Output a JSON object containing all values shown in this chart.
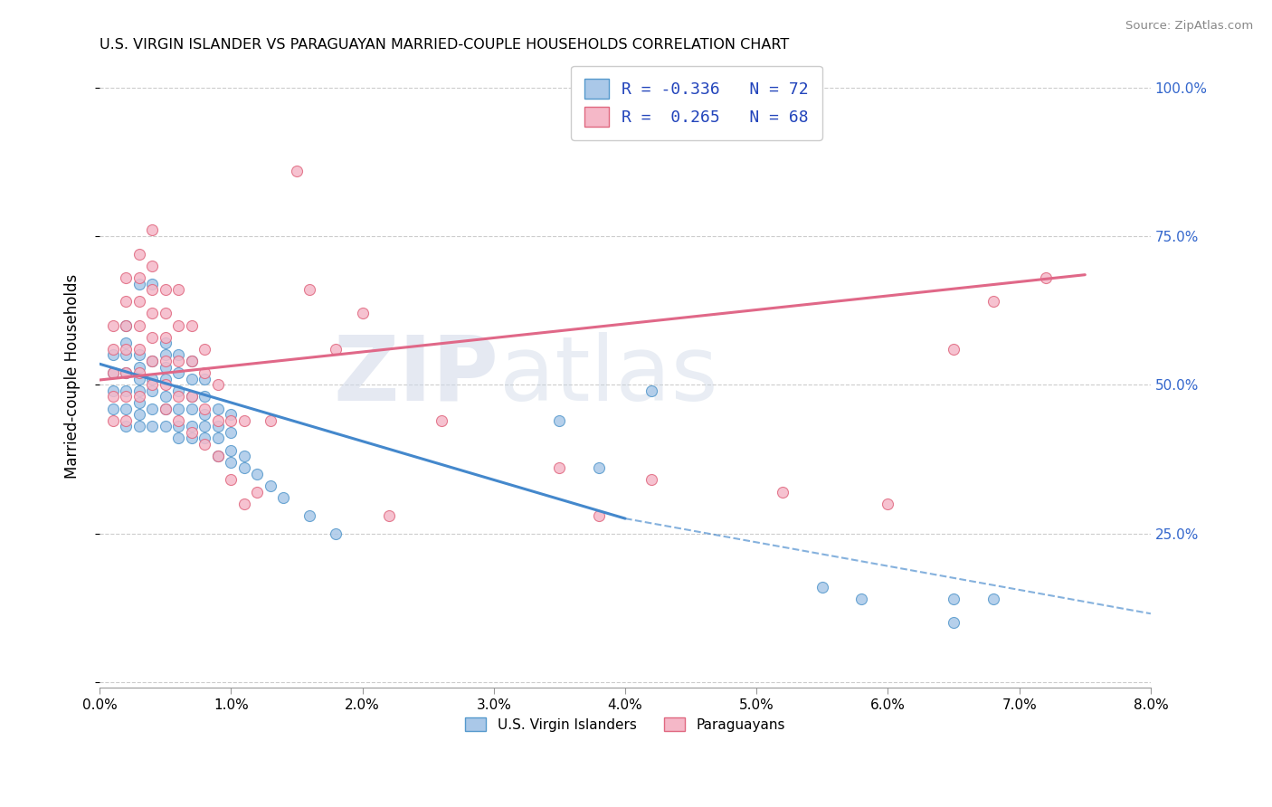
{
  "title": "U.S. VIRGIN ISLANDER VS PARAGUAYAN MARRIED-COUPLE HOUSEHOLDS CORRELATION CHART",
  "source": "Source: ZipAtlas.com",
  "ylabel": "Married-couple Households",
  "xlabel_blue": "U.S. Virgin Islanders",
  "xlabel_pink": "Paraguayans",
  "xmin": 0.0,
  "xmax": 0.08,
  "ymin": 0.0,
  "ymax": 1.0,
  "ytick_vals": [
    0.0,
    0.25,
    0.5,
    0.75,
    1.0
  ],
  "ytick_labels_right": [
    "",
    "25.0%",
    "50.0%",
    "75.0%",
    "100.0%"
  ],
  "xtick_vals": [
    0.0,
    0.01,
    0.02,
    0.03,
    0.04,
    0.05,
    0.06,
    0.07,
    0.08
  ],
  "xtick_labels": [
    "0.0%",
    "1.0%",
    "2.0%",
    "3.0%",
    "4.0%",
    "5.0%",
    "6.0%",
    "7.0%",
    "8.0%"
  ],
  "r_blue": -0.336,
  "n_blue": 72,
  "r_pink": 0.265,
  "n_pink": 68,
  "color_blue_fill": "#aac8e8",
  "color_blue_edge": "#5599cc",
  "color_pink_fill": "#f5b8c8",
  "color_pink_edge": "#e06880",
  "color_blue_line": "#4488cc",
  "color_pink_line": "#e06888",
  "watermark_zip": "ZIP",
  "watermark_atlas": "atlas",
  "blue_line_x0": 0.0,
  "blue_line_y0": 0.535,
  "blue_line_x1": 0.04,
  "blue_line_y1": 0.275,
  "blue_line_dash_x1": 0.08,
  "blue_line_dash_y1": 0.115,
  "pink_line_x0": 0.0,
  "pink_line_y0": 0.508,
  "pink_line_x1": 0.075,
  "pink_line_y1": 0.685,
  "blue_x": [
    0.001,
    0.001,
    0.001,
    0.001,
    0.002,
    0.002,
    0.002,
    0.002,
    0.002,
    0.002,
    0.002,
    0.003,
    0.003,
    0.003,
    0.003,
    0.003,
    0.003,
    0.003,
    0.003,
    0.004,
    0.004,
    0.004,
    0.004,
    0.004,
    0.004,
    0.005,
    0.005,
    0.005,
    0.005,
    0.005,
    0.005,
    0.005,
    0.006,
    0.006,
    0.006,
    0.006,
    0.006,
    0.006,
    0.007,
    0.007,
    0.007,
    0.007,
    0.007,
    0.007,
    0.008,
    0.008,
    0.008,
    0.008,
    0.008,
    0.009,
    0.009,
    0.009,
    0.009,
    0.01,
    0.01,
    0.01,
    0.01,
    0.011,
    0.011,
    0.012,
    0.013,
    0.014,
    0.016,
    0.018,
    0.035,
    0.038,
    0.042,
    0.055,
    0.058,
    0.065,
    0.065,
    0.068
  ],
  "blue_y": [
    0.46,
    0.49,
    0.52,
    0.55,
    0.43,
    0.46,
    0.49,
    0.52,
    0.55,
    0.57,
    0.6,
    0.43,
    0.45,
    0.47,
    0.49,
    0.51,
    0.53,
    0.55,
    0.67,
    0.43,
    0.46,
    0.49,
    0.51,
    0.54,
    0.67,
    0.43,
    0.46,
    0.48,
    0.51,
    0.53,
    0.55,
    0.57,
    0.41,
    0.43,
    0.46,
    0.49,
    0.52,
    0.55,
    0.41,
    0.43,
    0.46,
    0.48,
    0.51,
    0.54,
    0.41,
    0.43,
    0.45,
    0.48,
    0.51,
    0.38,
    0.41,
    0.43,
    0.46,
    0.37,
    0.39,
    0.42,
    0.45,
    0.36,
    0.38,
    0.35,
    0.33,
    0.31,
    0.28,
    0.25,
    0.44,
    0.36,
    0.49,
    0.16,
    0.14,
    0.14,
    0.1,
    0.14
  ],
  "pink_x": [
    0.001,
    0.001,
    0.001,
    0.001,
    0.001,
    0.002,
    0.002,
    0.002,
    0.002,
    0.002,
    0.002,
    0.002,
    0.003,
    0.003,
    0.003,
    0.003,
    0.003,
    0.003,
    0.003,
    0.004,
    0.004,
    0.004,
    0.004,
    0.004,
    0.004,
    0.004,
    0.005,
    0.005,
    0.005,
    0.005,
    0.005,
    0.005,
    0.006,
    0.006,
    0.006,
    0.006,
    0.006,
    0.007,
    0.007,
    0.007,
    0.007,
    0.008,
    0.008,
    0.008,
    0.008,
    0.009,
    0.009,
    0.009,
    0.01,
    0.01,
    0.011,
    0.011,
    0.012,
    0.013,
    0.015,
    0.016,
    0.018,
    0.02,
    0.022,
    0.026,
    0.035,
    0.038,
    0.042,
    0.052,
    0.06,
    0.065,
    0.068,
    0.072
  ],
  "pink_y": [
    0.44,
    0.48,
    0.52,
    0.56,
    0.6,
    0.44,
    0.48,
    0.52,
    0.56,
    0.6,
    0.64,
    0.68,
    0.48,
    0.52,
    0.56,
    0.6,
    0.64,
    0.68,
    0.72,
    0.5,
    0.54,
    0.58,
    0.62,
    0.66,
    0.7,
    0.76,
    0.46,
    0.5,
    0.54,
    0.58,
    0.62,
    0.66,
    0.44,
    0.48,
    0.54,
    0.6,
    0.66,
    0.42,
    0.48,
    0.54,
    0.6,
    0.4,
    0.46,
    0.52,
    0.56,
    0.38,
    0.44,
    0.5,
    0.34,
    0.44,
    0.3,
    0.44,
    0.32,
    0.44,
    0.86,
    0.66,
    0.56,
    0.62,
    0.28,
    0.44,
    0.36,
    0.28,
    0.34,
    0.32,
    0.3,
    0.56,
    0.64,
    0.68
  ]
}
